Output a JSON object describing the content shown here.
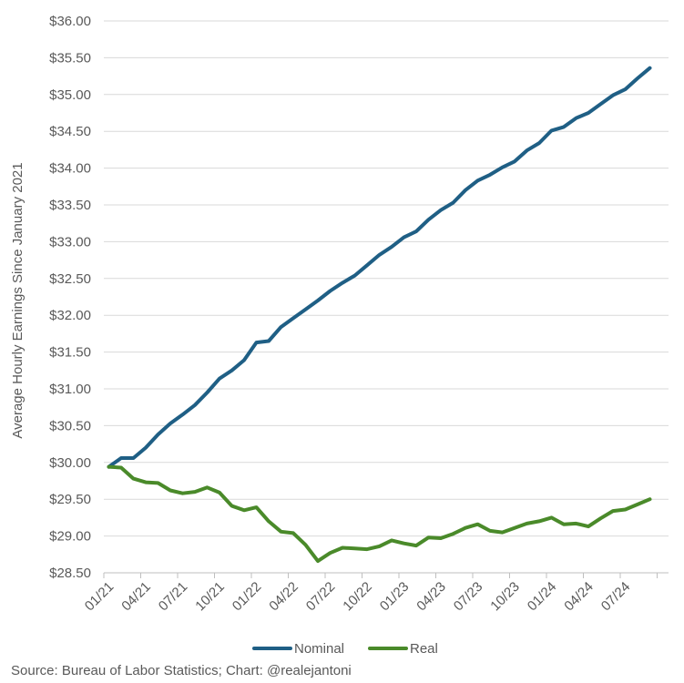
{
  "source": "Source: Bureau of Labor Statistics; Chart: @realejantoni",
  "chart_data": {
    "type": "line",
    "ylabel": "Average Hourly Earnings Since January 2021",
    "ylim": [
      28.5,
      36.0
    ],
    "y_ticks": [
      "$28.50",
      "$29.00",
      "$29.50",
      "$30.00",
      "$30.50",
      "$31.00",
      "$31.50",
      "$32.00",
      "$32.50",
      "$33.00",
      "$33.50",
      "$34.00",
      "$34.50",
      "$35.00",
      "$35.50",
      "$36.00"
    ],
    "x_tick_labels": [
      "01/21",
      "04/21",
      "07/21",
      "10/21",
      "01/22",
      "04/22",
      "07/22",
      "10/22",
      "01/23",
      "04/23",
      "07/23",
      "10/23",
      "01/24",
      "04/24",
      "07/24"
    ],
    "grid": "horizontal",
    "legend_position": "bottom",
    "colors": {
      "Nominal": "#1f5f85",
      "Real": "#4a8a2a"
    },
    "series": [
      {
        "name": "Nominal",
        "values": [
          29.94,
          30.06,
          30.06,
          30.2,
          30.38,
          30.53,
          30.65,
          30.78,
          30.95,
          31.14,
          31.25,
          31.39,
          31.63,
          31.65,
          31.84,
          31.96,
          32.08,
          32.2,
          32.33,
          32.44,
          32.54,
          32.68,
          32.82,
          32.93,
          33.06,
          33.14,
          33.3,
          33.43,
          33.53,
          33.7,
          33.83,
          33.91,
          34.01,
          34.09,
          34.24,
          34.34,
          34.51,
          34.56,
          34.68,
          34.75,
          34.87,
          34.99,
          35.07,
          35.22,
          35.36
        ]
      },
      {
        "name": "Real",
        "values": [
          29.94,
          29.93,
          29.78,
          29.73,
          29.72,
          29.62,
          29.58,
          29.6,
          29.66,
          29.59,
          29.41,
          29.35,
          29.39,
          29.2,
          29.06,
          29.04,
          28.88,
          28.66,
          28.77,
          28.84,
          28.83,
          28.82,
          28.86,
          28.94,
          28.9,
          28.87,
          28.98,
          28.97,
          29.03,
          29.11,
          29.16,
          29.07,
          29.05,
          29.11,
          29.17,
          29.2,
          29.25,
          29.16,
          29.17,
          29.13,
          29.24,
          29.34,
          29.36,
          29.43,
          29.5
        ]
      }
    ]
  }
}
